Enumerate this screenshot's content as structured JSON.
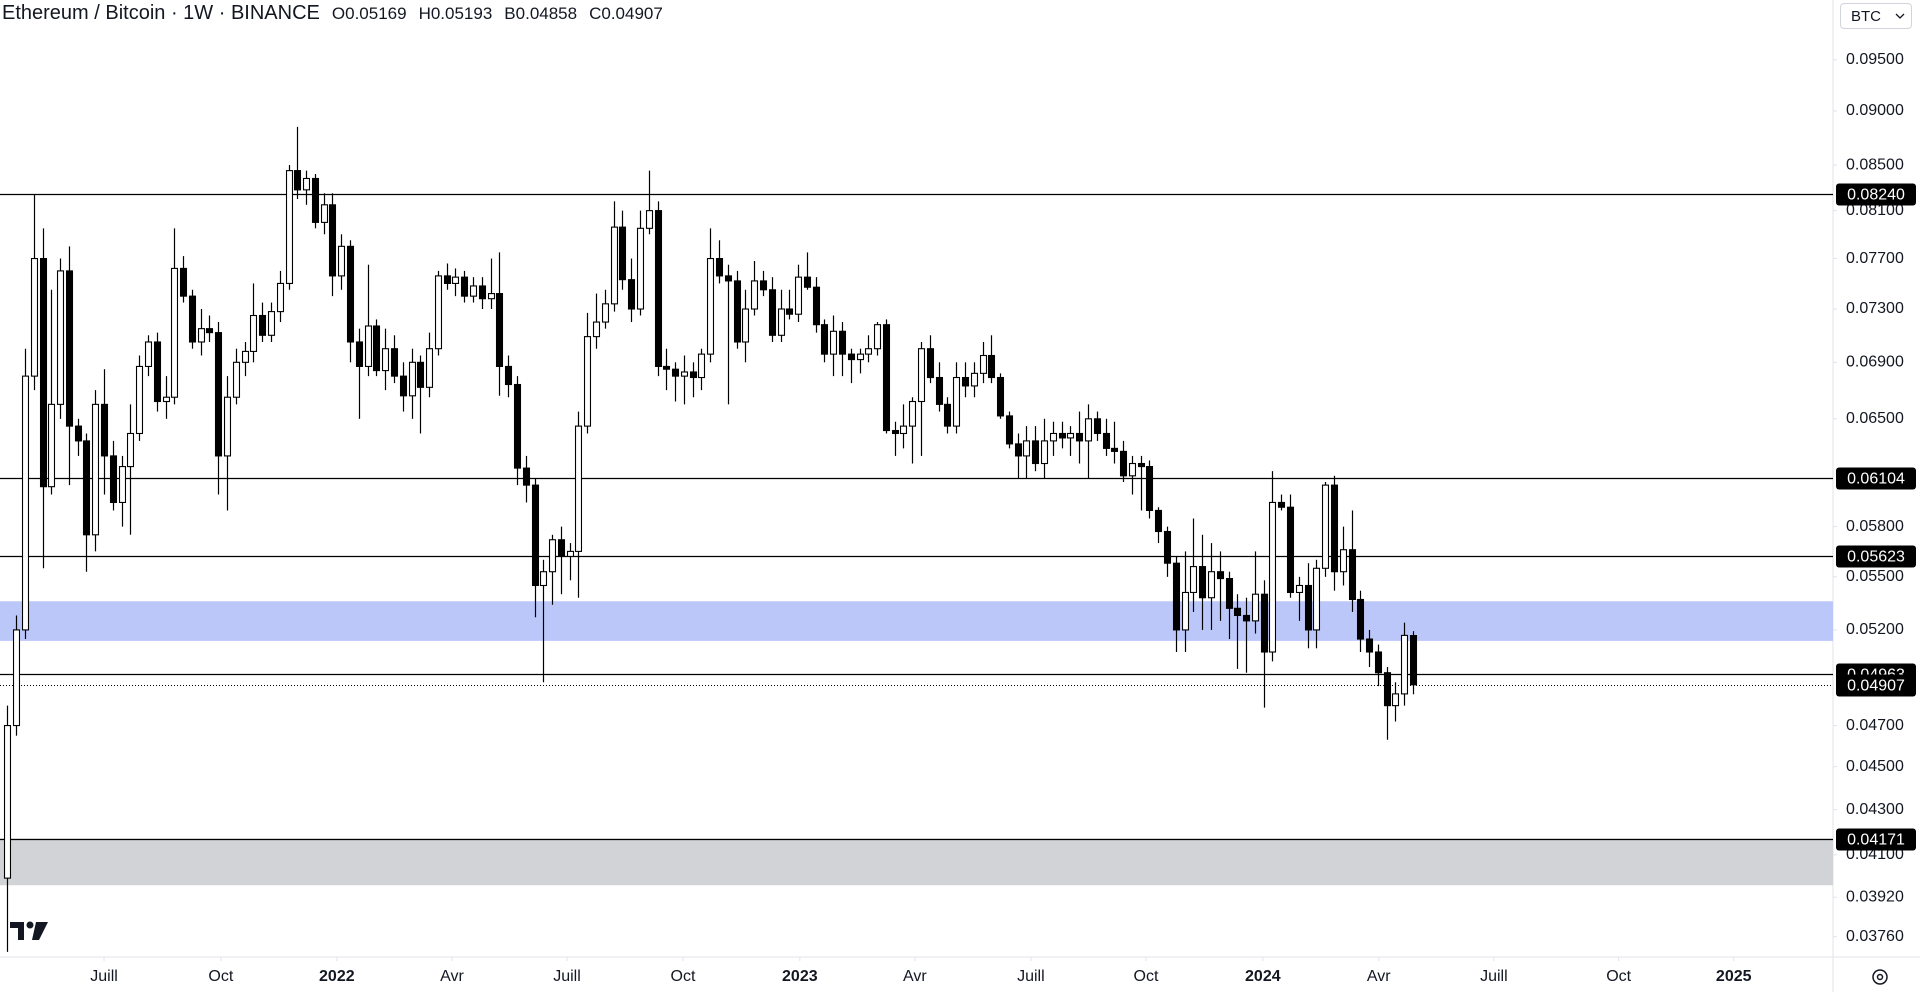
{
  "chart_data": {
    "type": "candlestick",
    "title": "Ethereum / Bitcoin · 1W · BINANCE",
    "ohlc_labels": [
      "O",
      "H",
      "B",
      "C"
    ],
    "currency": "BTC",
    "log_scale": true,
    "grid": false,
    "up_color": "#ffffff",
    "down_color": "#000000",
    "open": [
      0.04,
      0.047,
      0.052,
      0.068,
      0.077,
      0.0605,
      0.066,
      0.076,
      0.0645,
      0.0635,
      0.0575,
      0.066,
      0.0625,
      0.0595,
      0.0618,
      0.064,
      0.0687,
      0.0705,
      0.0662,
      0.0665,
      0.0762,
      0.074,
      0.0705,
      0.0715,
      0.0712,
      0.0625,
      0.0665,
      0.069,
      0.0698,
      0.0725,
      0.071,
      0.0728,
      0.075,
      0.0845,
      0.0828,
      0.0838,
      0.08,
      0.0815,
      0.0756,
      0.078,
      0.0705,
      0.0687,
      0.0717,
      0.0684,
      0.07,
      0.068,
      0.0666,
      0.069,
      0.0672,
      0.07,
      0.0756,
      0.075,
      0.0755,
      0.074,
      0.0748,
      0.0738,
      0.0742,
      0.0687,
      0.0674,
      0.0617,
      0.0606,
      0.0545,
      0.0553,
      0.0572,
      0.0562,
      0.0565,
      0.0645,
      0.0709,
      0.072,
      0.0734,
      0.0796,
      0.0753,
      0.073,
      0.0795,
      0.081,
      0.0687,
      0.0685,
      0.068,
      0.0683,
      0.0679,
      0.0696,
      0.077,
      0.0756,
      0.0752,
      0.0705,
      0.073,
      0.0752,
      0.0745,
      0.071,
      0.073,
      0.0726,
      0.0755,
      0.0747,
      0.0718,
      0.0696,
      0.0713,
      0.0696,
      0.0692,
      0.0696,
      0.07,
      0.0718,
      0.0642,
      0.064,
      0.0645,
      0.0662,
      0.07,
      0.0679,
      0.066,
      0.0645,
      0.0679,
      0.0673,
      0.0682,
      0.0695,
      0.0679,
      0.0652,
      0.0633,
      0.0625,
      0.0635,
      0.062,
      0.0635,
      0.064,
      0.0637,
      0.064,
      0.0635,
      0.065,
      0.064,
      0.063,
      0.0628,
      0.0612,
      0.062,
      0.0618,
      0.059,
      0.0577,
      0.0558,
      0.052,
      0.0541,
      0.0556,
      0.0538,
      0.0553,
      0.0549,
      0.0532,
      0.0528,
      0.0525,
      0.054,
      0.0508,
      0.0595,
      0.0592,
      0.0541,
      0.0545,
      0.052,
      0.0555,
      0.0606,
      0.0553,
      0.0566,
      0.0537,
      0.0515,
      0.0508,
      0.0497,
      0.048,
      0.0486,
      0.05169
    ],
    "high": [
      0.048,
      0.0528,
      0.07,
      0.0824,
      0.0795,
      0.0745,
      0.077,
      0.078,
      0.065,
      0.064,
      0.067,
      0.0685,
      0.0635,
      0.0625,
      0.066,
      0.0695,
      0.071,
      0.0712,
      0.068,
      0.0795,
      0.0772,
      0.0745,
      0.073,
      0.0725,
      0.072,
      0.068,
      0.07,
      0.0705,
      0.075,
      0.0735,
      0.0735,
      0.076,
      0.085,
      0.0885,
      0.0845,
      0.0842,
      0.0825,
      0.0825,
      0.079,
      0.0785,
      0.0715,
      0.0765,
      0.0722,
      0.0715,
      0.071,
      0.069,
      0.07,
      0.0695,
      0.0712,
      0.076,
      0.0766,
      0.0762,
      0.076,
      0.0755,
      0.0755,
      0.077,
      0.0775,
      0.0695,
      0.068,
      0.0625,
      0.061,
      0.056,
      0.0575,
      0.058,
      0.057,
      0.0655,
      0.0727,
      0.0742,
      0.0745,
      0.0818,
      0.081,
      0.077,
      0.081,
      0.0845,
      0.0818,
      0.07,
      0.069,
      0.0695,
      0.069,
      0.07,
      0.0795,
      0.0785,
      0.0765,
      0.076,
      0.0745,
      0.0768,
      0.076,
      0.0755,
      0.0745,
      0.0745,
      0.0765,
      0.0775,
      0.0755,
      0.0722,
      0.0725,
      0.072,
      0.07,
      0.07,
      0.071,
      0.072,
      0.0722,
      0.0648,
      0.066,
      0.0665,
      0.0705,
      0.071,
      0.069,
      0.0665,
      0.069,
      0.069,
      0.069,
      0.0705,
      0.071,
      0.0682,
      0.0655,
      0.064,
      0.0645,
      0.0645,
      0.065,
      0.0648,
      0.0648,
      0.0645,
      0.0655,
      0.066,
      0.0655,
      0.065,
      0.0648,
      0.0635,
      0.0625,
      0.0625,
      0.0622,
      0.0592,
      0.058,
      0.0562,
      0.0565,
      0.0585,
      0.0575,
      0.057,
      0.0565,
      0.0553,
      0.054,
      0.0538,
      0.0565,
      0.0548,
      0.0615,
      0.06,
      0.06,
      0.055,
      0.0558,
      0.056,
      0.0608,
      0.0612,
      0.058,
      0.059,
      0.0542,
      0.052,
      0.0512,
      0.05,
      0.0492,
      0.0524,
      0.05193
    ],
    "low": [
      0.037,
      0.0465,
      0.0515,
      0.067,
      0.0555,
      0.06,
      0.065,
      0.0606,
      0.0625,
      0.0553,
      0.0565,
      0.06,
      0.059,
      0.058,
      0.0575,
      0.0635,
      0.068,
      0.0655,
      0.065,
      0.066,
      0.0735,
      0.07,
      0.0695,
      0.0705,
      0.06,
      0.059,
      0.066,
      0.068,
      0.069,
      0.0705,
      0.0705,
      0.072,
      0.0745,
      0.082,
      0.0815,
      0.0795,
      0.079,
      0.074,
      0.0745,
      0.069,
      0.065,
      0.068,
      0.068,
      0.067,
      0.0675,
      0.0655,
      0.065,
      0.064,
      0.0665,
      0.0695,
      0.0745,
      0.074,
      0.0735,
      0.0735,
      0.073,
      0.073,
      0.0666,
      0.0665,
      0.0606,
      0.0595,
      0.0527,
      0.0492,
      0.0534,
      0.054,
      0.0548,
      0.0538,
      0.064,
      0.07,
      0.0715,
      0.0728,
      0.0745,
      0.072,
      0.0725,
      0.079,
      0.068,
      0.067,
      0.0662,
      0.066,
      0.0665,
      0.067,
      0.069,
      0.075,
      0.066,
      0.07,
      0.069,
      0.0725,
      0.074,
      0.0705,
      0.0705,
      0.0722,
      0.072,
      0.0745,
      0.0712,
      0.069,
      0.068,
      0.068,
      0.0675,
      0.0682,
      0.069,
      0.0695,
      0.064,
      0.0625,
      0.063,
      0.062,
      0.0625,
      0.0675,
      0.0655,
      0.064,
      0.064,
      0.0665,
      0.0665,
      0.0675,
      0.0675,
      0.065,
      0.063,
      0.061,
      0.061,
      0.0615,
      0.061,
      0.0625,
      0.063,
      0.0625,
      0.062,
      0.061,
      0.0635,
      0.0625,
      0.062,
      0.0608,
      0.06,
      0.059,
      0.0585,
      0.057,
      0.055,
      0.0508,
      0.0508,
      0.053,
      0.052,
      0.052,
      0.0525,
      0.0515,
      0.0499,
      0.0497,
      0.0518,
      0.0479,
      0.0503,
      0.059,
      0.0538,
      0.0525,
      0.051,
      0.051,
      0.055,
      0.0542,
      0.0545,
      0.053,
      0.0508,
      0.05,
      0.049,
      0.0463,
      0.0472,
      0.048,
      0.04858
    ],
    "close": [
      0.047,
      0.052,
      0.068,
      0.077,
      0.0605,
      0.066,
      0.076,
      0.0645,
      0.0635,
      0.0575,
      0.066,
      0.0625,
      0.0595,
      0.0618,
      0.064,
      0.0687,
      0.0705,
      0.0662,
      0.0665,
      0.0762,
      0.074,
      0.0705,
      0.0715,
      0.0712,
      0.0625,
      0.0665,
      0.069,
      0.0698,
      0.0725,
      0.071,
      0.0728,
      0.075,
      0.0845,
      0.0828,
      0.0838,
      0.08,
      0.0815,
      0.0756,
      0.078,
      0.0705,
      0.0687,
      0.0717,
      0.0684,
      0.07,
      0.068,
      0.0666,
      0.069,
      0.0672,
      0.07,
      0.0756,
      0.075,
      0.0755,
      0.074,
      0.0748,
      0.0738,
      0.0742,
      0.0687,
      0.0674,
      0.0617,
      0.0606,
      0.0545,
      0.0553,
      0.0572,
      0.0562,
      0.0565,
      0.0645,
      0.0709,
      0.072,
      0.0734,
      0.0796,
      0.0753,
      0.073,
      0.0795,
      0.081,
      0.0687,
      0.0685,
      0.068,
      0.0683,
      0.0679,
      0.0696,
      0.077,
      0.0756,
      0.0752,
      0.0705,
      0.073,
      0.0752,
      0.0745,
      0.071,
      0.073,
      0.0726,
      0.0755,
      0.0747,
      0.0718,
      0.0696,
      0.0713,
      0.0696,
      0.0692,
      0.0696,
      0.07,
      0.0718,
      0.0642,
      0.064,
      0.0645,
      0.0662,
      0.07,
      0.0679,
      0.066,
      0.0645,
      0.0679,
      0.0673,
      0.0682,
      0.0695,
      0.0679,
      0.0652,
      0.0633,
      0.0625,
      0.0635,
      0.062,
      0.0635,
      0.064,
      0.0637,
      0.064,
      0.0635,
      0.065,
      0.064,
      0.063,
      0.0628,
      0.0612,
      0.062,
      0.0618,
      0.059,
      0.0577,
      0.0558,
      0.052,
      0.0541,
      0.0556,
      0.0538,
      0.0553,
      0.0549,
      0.0532,
      0.0528,
      0.0525,
      0.054,
      0.0508,
      0.0595,
      0.0592,
      0.0541,
      0.0545,
      0.052,
      0.0555,
      0.0606,
      0.0553,
      0.0566,
      0.0537,
      0.0515,
      0.0508,
      0.0497,
      0.048,
      0.0486,
      0.0517,
      0.04907
    ],
    "xlim": [
      -0.84,
      207.8
    ],
    "xticks": [
      {
        "value": 11.0,
        "label": "Juill"
      },
      {
        "value": 24.3,
        "label": "Oct"
      },
      {
        "value": 37.5,
        "label": "2022"
      },
      {
        "value": 50.6,
        "label": "Avr"
      },
      {
        "value": 63.7,
        "label": "Juill"
      },
      {
        "value": 76.9,
        "label": "Oct"
      },
      {
        "value": 90.2,
        "label": "2023"
      },
      {
        "value": 103.3,
        "label": "Avr"
      },
      {
        "value": 116.5,
        "label": "Juill"
      },
      {
        "value": 129.6,
        "label": "Oct"
      },
      {
        "value": 142.9,
        "label": "2024"
      },
      {
        "value": 156.1,
        "label": "Avr"
      },
      {
        "value": 169.2,
        "label": "Juill"
      },
      {
        "value": 183.4,
        "label": "Oct"
      },
      {
        "value": 196.5,
        "label": "2025"
      }
    ],
    "ylim": [
      0.0368,
      0.1012
    ],
    "yticks": [
      {
        "value": 0.095,
        "label": "0.09500"
      },
      {
        "value": 0.09,
        "label": "0.09000"
      },
      {
        "value": 0.085,
        "label": "0.08500"
      },
      {
        "value": 0.081,
        "label": "0.08100"
      },
      {
        "value": 0.077,
        "label": "0.07700"
      },
      {
        "value": 0.073,
        "label": "0.07300"
      },
      {
        "value": 0.069,
        "label": "0.06900"
      },
      {
        "value": 0.065,
        "label": "0.06500"
      },
      {
        "value": 0.058,
        "label": "0.05800"
      },
      {
        "value": 0.055,
        "label": "0.05500"
      },
      {
        "value": 0.052,
        "label": "0.05200"
      },
      {
        "value": 0.047,
        "label": "0.04700"
      },
      {
        "value": 0.045,
        "label": "0.04500"
      },
      {
        "value": 0.043,
        "label": "0.04300"
      },
      {
        "value": 0.041,
        "label": "0.04100"
      },
      {
        "value": 0.0392,
        "label": "0.03920"
      },
      {
        "value": 0.0376,
        "label": "0.03760"
      }
    ],
    "levels": [
      {
        "value": 0.0824,
        "label": "0.08240"
      },
      0.06104,
      0.05623,
      0.04963,
      0.04171
    ],
    "zones": [
      {
        "range": [
          0.0514,
          0.0536
        ],
        "color": "#bcc7f9"
      },
      {
        "range": [
          0.0397,
          0.04171
        ],
        "color": "#d1d3d6"
      }
    ]
  }
}
